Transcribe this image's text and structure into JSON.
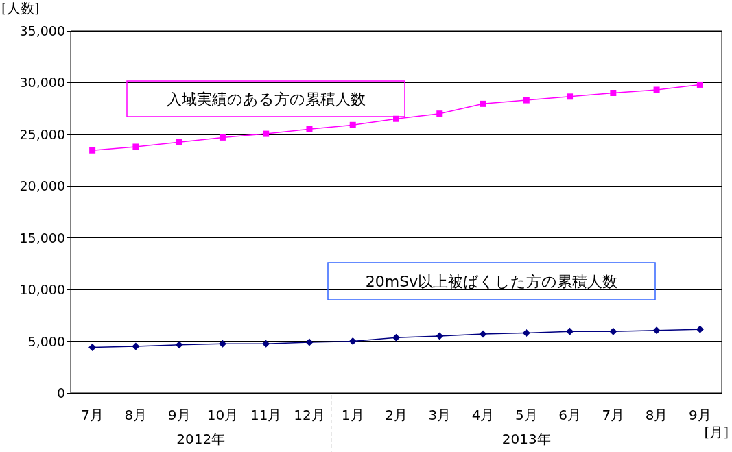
{
  "chart_data": {
    "type": "line",
    "ylabel": "[人数]",
    "xlabel": "[月]",
    "categories": [
      "7月",
      "8月",
      "9月",
      "10月",
      "11月",
      "12月",
      "1月",
      "2月",
      "3月",
      "4月",
      "5月",
      "6月",
      "7月",
      "8月",
      "9月"
    ],
    "series": [
      {
        "name": "入域実績のある方の累積人数",
        "color": "#ff00ff",
        "marker": "square",
        "values": [
          23450,
          23800,
          24250,
          24700,
          25050,
          25500,
          25900,
          26500,
          27000,
          27950,
          28300,
          28650,
          29000,
          29300,
          29800
        ]
      },
      {
        "name": "20mSv以上被ばくした方の累積人数",
        "color": "#000080",
        "marker": "diamond",
        "values": [
          4400,
          4500,
          4650,
          4750,
          4750,
          4900,
          5000,
          5350,
          5500,
          5700,
          5800,
          5950,
          5950,
          6050,
          6150
        ]
      }
    ],
    "ylim": [
      0,
      35000
    ],
    "yticks": [
      0,
      {
        "value": 5000,
        "label": "5,000"
      },
      {
        "value": 10000,
        "label": "10,000"
      },
      {
        "value": 15000,
        "label": "15,000"
      },
      {
        "value": 20000,
        "label": "20,000"
      },
      {
        "value": 25000,
        "label": "25,000"
      },
      {
        "value": 30000,
        "label": "30,000"
      },
      {
        "value": 35000,
        "label": "35,000"
      }
    ],
    "grid": "y",
    "annotations": [
      "2012年",
      "2013年"
    ]
  }
}
